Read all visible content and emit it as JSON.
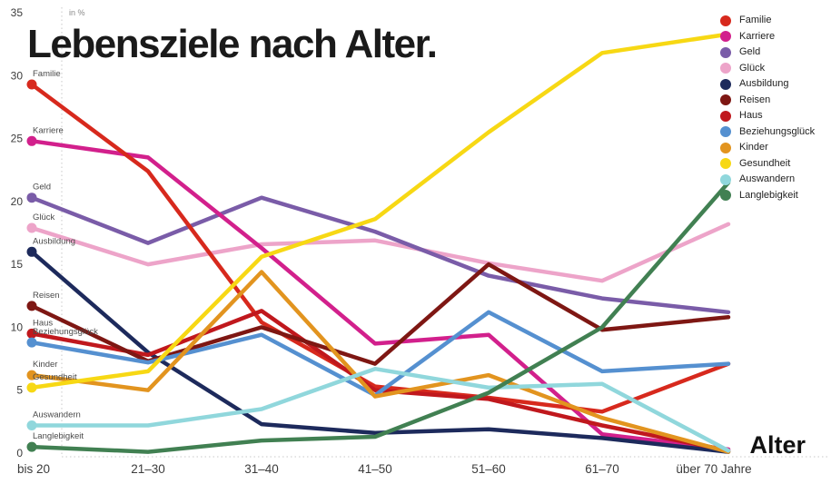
{
  "title": "Lebensziele nach Alter.",
  "chart_data": {
    "type": "line",
    "title": "Lebensziele nach Alter.",
    "ylabel": "in %",
    "xlabel": "Alter",
    "ylim": [
      0,
      35
    ],
    "y_ticks": [
      0,
      5,
      10,
      15,
      20,
      25,
      30,
      35
    ],
    "grid": "dotted-axis-only",
    "legend_position": "top-right",
    "categories": [
      "bis 20",
      "21–30",
      "31–40",
      "41–50",
      "51–60",
      "61–70",
      "über 70 Jahre"
    ],
    "series": [
      {
        "name": "Familie",
        "color": "#d7291d",
        "values": [
          29.3,
          22.4,
          10.4,
          5.3,
          4.4,
          3.3,
          7.1
        ]
      },
      {
        "name": "Karriere",
        "color": "#d2208c",
        "values": [
          24.8,
          23.5,
          16.3,
          8.7,
          9.4,
          1.5,
          0.3
        ]
      },
      {
        "name": "Geld",
        "color": "#7a5ca8",
        "values": [
          20.3,
          16.7,
          20.3,
          17.6,
          14.1,
          12.3,
          11.2
        ]
      },
      {
        "name": "Glück",
        "color": "#eda4c9",
        "values": [
          17.9,
          15.0,
          16.6,
          16.9,
          15.1,
          13.7,
          18.2
        ]
      },
      {
        "name": "Ausbildung",
        "color": "#1d2a5c",
        "values": [
          16.0,
          8.0,
          2.3,
          1.6,
          1.9,
          1.2,
          0.1
        ]
      },
      {
        "name": "Reisen",
        "color": "#7e1713",
        "values": [
          11.7,
          7.3,
          10.0,
          7.1,
          15.0,
          9.8,
          10.8
        ]
      },
      {
        "name": "Haus",
        "color": "#c0181d",
        "values": [
          9.5,
          7.8,
          11.3,
          5.0,
          4.3,
          2.2,
          0.2
        ]
      },
      {
        "name": "Beziehungsglück",
        "color": "#5590d0",
        "values": [
          8.8,
          7.2,
          9.4,
          4.6,
          11.2,
          6.5,
          7.1
        ]
      },
      {
        "name": "Kinder",
        "color": "#e2941f",
        "values": [
          6.2,
          5.0,
          14.4,
          4.5,
          6.2,
          2.8,
          0.1
        ]
      },
      {
        "name": "Gesundheit",
        "color": "#f7d814",
        "values": [
          5.2,
          6.5,
          15.6,
          18.6,
          25.5,
          31.8,
          33.3
        ]
      },
      {
        "name": "Auswandern",
        "color": "#90d7dc",
        "values": [
          2.2,
          2.2,
          3.5,
          6.7,
          5.2,
          5.5,
          0.2
        ]
      },
      {
        "name": "Langlebigkeit",
        "color": "#418052",
        "values": [
          0.5,
          0.1,
          1.0,
          1.3,
          4.8,
          10.0,
          21.5
        ]
      }
    ],
    "draw_order": [
      3,
      2,
      1,
      0,
      4,
      6,
      5,
      7,
      8,
      10,
      11,
      9
    ]
  }
}
